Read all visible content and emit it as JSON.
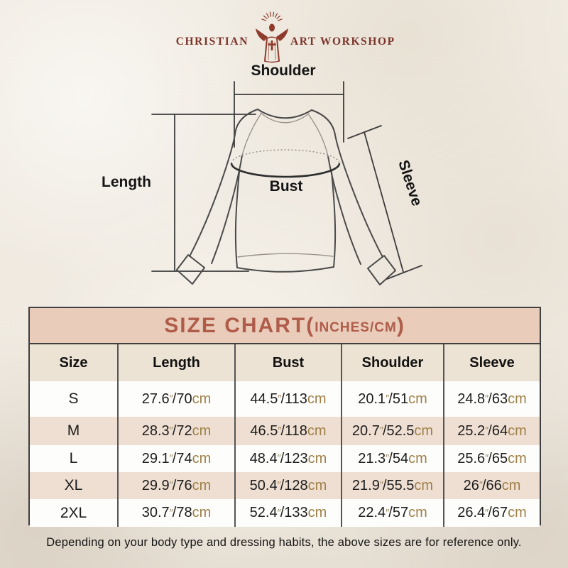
{
  "logo": {
    "left": "CHRISTIAN",
    "right": "ART WORKSHOP",
    "figure": "jesus-with-raised-arms-and-rays",
    "color": "#7c3429"
  },
  "diagram": {
    "labels": {
      "shoulder": "Shoulder",
      "length": "Length",
      "bust": "Bust",
      "sleeve": "Sleeve"
    }
  },
  "size_chart": {
    "title_prefix": "SIZE CHART(",
    "title_inner": "INCHES/CM",
    "title_suffix": ")",
    "columns": [
      "Size",
      "Length",
      "Bust",
      "Shoulder",
      "Sleeve"
    ],
    "unit_inch_mark": "″",
    "unit_cm": "cm",
    "rows": [
      {
        "size": "S",
        "length": {
          "in": "27.6",
          "cm": "70"
        },
        "bust": {
          "in": "44.5",
          "cm": "113"
        },
        "shoulder": {
          "in": "20.1",
          "cm": "51"
        },
        "sleeve": {
          "in": "24.8",
          "cm": "63"
        }
      },
      {
        "size": "M",
        "length": {
          "in": "28.3",
          "cm": "72"
        },
        "bust": {
          "in": "46.5",
          "cm": "118"
        },
        "shoulder": {
          "in": "20.7",
          "cm": "52.5"
        },
        "sleeve": {
          "in": "25.2",
          "cm": "64"
        }
      },
      {
        "size": "L",
        "length": {
          "in": "29.1",
          "cm": "74"
        },
        "bust": {
          "in": "48.4",
          "cm": "123"
        },
        "shoulder": {
          "in": "21.3",
          "cm": "54"
        },
        "sleeve": {
          "in": "25.6",
          "cm": "65"
        }
      },
      {
        "size": "XL",
        "length": {
          "in": "29.9",
          "cm": "76"
        },
        "bust": {
          "in": "50.4",
          "cm": "128"
        },
        "shoulder": {
          "in": "21.9",
          "cm": "55.5"
        },
        "sleeve": {
          "in": "26",
          "cm": "66"
        }
      },
      {
        "size": "2XL",
        "length": {
          "in": "30.7",
          "cm": "78"
        },
        "bust": {
          "in": "52.4",
          "cm": "133"
        },
        "shoulder": {
          "in": "22.4",
          "cm": "57"
        },
        "sleeve": {
          "in": "26.4",
          "cm": "67"
        }
      }
    ],
    "colors": {
      "title_bg": "#e9ccb9",
      "title_text": "#b05c4a",
      "header_row_bg": "#ece3d4",
      "alt_row_bg": "#efdfd2",
      "white_row_bg": "#fdfdfb",
      "unit_text": "#9f8049",
      "border": "#3f3f3f"
    }
  },
  "footer": {
    "note": "Depending on your body type and dressing habits, the above sizes are for reference only."
  },
  "chart_data": {
    "type": "table",
    "title": "SIZE CHART(INCHES/CM)",
    "columns": [
      "Size",
      "Length",
      "Bust",
      "Shoulder",
      "Sleeve"
    ],
    "rows": [
      [
        "S",
        "27.6\"/70cm",
        "44.5\"/113cm",
        "20.1\"/51cm",
        "24.8\"/63cm"
      ],
      [
        "M",
        "28.3\"/72cm",
        "46.5\"/118cm",
        "20.7\"/52.5cm",
        "25.2\"/64cm"
      ],
      [
        "L",
        "29.1\"/74cm",
        "48.4\"/123cm",
        "21.3\"/54cm",
        "25.6\"/65cm"
      ],
      [
        "XL",
        "29.9\"/76cm",
        "50.4\"/128cm",
        "21.9\"/55.5cm",
        "26\"/66cm"
      ],
      [
        "2XL",
        "30.7\"/78cm",
        "52.4\"/133cm",
        "22.4\"/57cm",
        "26.4\"/67cm"
      ]
    ],
    "note": "Depending on your body type and dressing habits, the above sizes are for reference only."
  }
}
